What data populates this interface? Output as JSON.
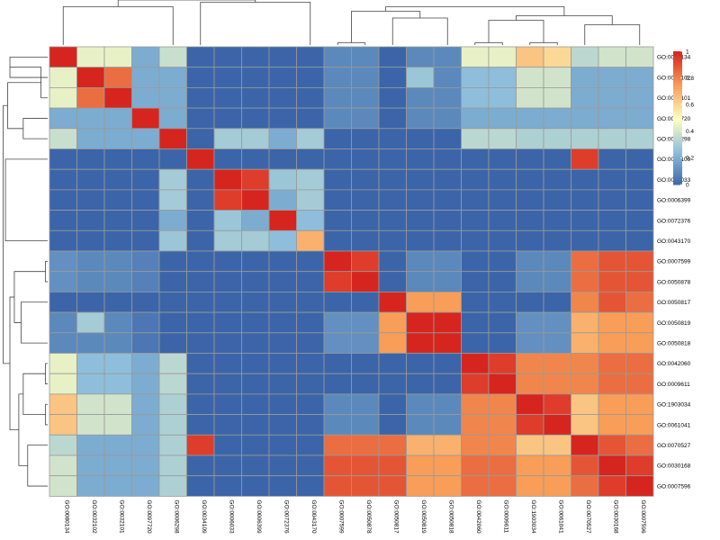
{
  "chart_data": {
    "type": "heatmap",
    "title": "",
    "xlabel": "",
    "ylabel": "",
    "rows": [
      "GO:0080134",
      "GO:0032102",
      "GO:0032101",
      "GO:0097720",
      "GO:0006298",
      "GO:0034109",
      "GO:0006033",
      "GO:0006399",
      "GO:0072376",
      "GO:0043170",
      "GO:0007599",
      "GO:0050878",
      "GO:0050817",
      "GO:0050819",
      "GO:0050818",
      "GO:0042060",
      "GO:0009611",
      "GO:1903034",
      "GO:0061041",
      "GO:0070527",
      "GO:0030168",
      "GO:0007596"
    ],
    "columns": [
      "GO:0080134",
      "GO:0032102",
      "GO:0032101",
      "GO:0097720",
      "GO:0006298",
      "GO:0034109",
      "GO:0006033",
      "GO:0006399",
      "GO:0072376",
      "GO:0043170",
      "GO:0007599",
      "GO:0050878",
      "GO:0050817",
      "GO:0050819",
      "GO:0050818",
      "GO:0042060",
      "GO:0009611",
      "GO:1903034",
      "GO:0061041",
      "GO:0070527",
      "GO:0030168",
      "GO:0007596"
    ],
    "values": [
      [
        1.0,
        0.45,
        0.45,
        0.2,
        0.38,
        0,
        0,
        0,
        0,
        0,
        0.1,
        0.1,
        0,
        0.1,
        0.1,
        0.45,
        0.45,
        0.65,
        0.6,
        0.35,
        0.4,
        0.4
      ],
      [
        0.45,
        1.0,
        0.85,
        0.2,
        0.2,
        0,
        0,
        0,
        0,
        0,
        0.1,
        0.1,
        0,
        0.28,
        0.1,
        0.25,
        0.25,
        0.4,
        0.4,
        0.2,
        0.2,
        0.2
      ],
      [
        0.45,
        0.85,
        1.0,
        0.2,
        0.2,
        0,
        0,
        0,
        0,
        0,
        0.1,
        0.1,
        0,
        0.1,
        0.1,
        0.25,
        0.25,
        0.4,
        0.4,
        0.2,
        0.2,
        0.2
      ],
      [
        0.2,
        0.2,
        0.2,
        1.0,
        0.2,
        0,
        0,
        0,
        0,
        0,
        0.1,
        0.1,
        0,
        0.1,
        0.1,
        0.2,
        0.2,
        0.2,
        0.2,
        0.2,
        0.2,
        0.2
      ],
      [
        0.38,
        0.2,
        0.2,
        0.2,
        1.0,
        0,
        0.3,
        0.3,
        0.2,
        0.3,
        0,
        0,
        0,
        0,
        0,
        0.35,
        0.35,
        0.32,
        0.32,
        0.32,
        0.32,
        0.32
      ],
      [
        0,
        0,
        0,
        0,
        0,
        1.0,
        0,
        0,
        0,
        0,
        0,
        0,
        0,
        0,
        0,
        0,
        0,
        0,
        0,
        0.95,
        0,
        0
      ],
      [
        0,
        0,
        0,
        0,
        0.3,
        0,
        1.0,
        0.95,
        0.28,
        0.3,
        0,
        0,
        0,
        0,
        0,
        0,
        0,
        0,
        0,
        0,
        0,
        0
      ],
      [
        0,
        0,
        0,
        0,
        0.3,
        0,
        0.95,
        1.0,
        0.2,
        0.3,
        0,
        0,
        0,
        0,
        0,
        0,
        0,
        0,
        0,
        0,
        0,
        0
      ],
      [
        0,
        0,
        0,
        0,
        0.2,
        0,
        0.28,
        0.2,
        1.0,
        0.25,
        0,
        0,
        0,
        0,
        0,
        0,
        0,
        0,
        0,
        0,
        0,
        0
      ],
      [
        0,
        0,
        0,
        0,
        0.28,
        0,
        0.3,
        0.3,
        0.25,
        0.7,
        0,
        0,
        0,
        0,
        0,
        0,
        0,
        0,
        0,
        0,
        0,
        0
      ],
      [
        0.12,
        0.1,
        0.1,
        0.08,
        0,
        0,
        0,
        0,
        0,
        0,
        1.0,
        0.95,
        0,
        0.1,
        0.1,
        0,
        0,
        0.1,
        0.1,
        0.85,
        0.9,
        0.9
      ],
      [
        0.12,
        0.1,
        0.1,
        0.08,
        0,
        0,
        0,
        0,
        0,
        0,
        0.95,
        1.0,
        0,
        0.1,
        0.1,
        0,
        0,
        0.1,
        0.1,
        0.85,
        0.9,
        0.9
      ],
      [
        0,
        0,
        0,
        0,
        0,
        0,
        0,
        0,
        0,
        0,
        0,
        0,
        1.0,
        0.75,
        0.75,
        0,
        0,
        0,
        0,
        0.8,
        0.9,
        0.85
      ],
      [
        0.1,
        0.3,
        0.1,
        0.05,
        0,
        0,
        0,
        0,
        0,
        0,
        0.12,
        0.12,
        0.75,
        1.0,
        1.0,
        0,
        0,
        0.12,
        0.12,
        0.7,
        0.75,
        0.75
      ],
      [
        0.1,
        0.1,
        0.1,
        0.05,
        0,
        0,
        0,
        0,
        0,
        0,
        0.12,
        0.12,
        0.75,
        1.0,
        1.0,
        0,
        0,
        0.12,
        0.12,
        0.7,
        0.75,
        0.75
      ],
      [
        0.45,
        0.25,
        0.25,
        0.2,
        0.35,
        0,
        0,
        0,
        0,
        0,
        0,
        0,
        0,
        0,
        0,
        1.0,
        0.95,
        0.8,
        0.8,
        0.8,
        0.85,
        0.85
      ],
      [
        0.45,
        0.25,
        0.25,
        0.2,
        0.35,
        0,
        0,
        0,
        0,
        0,
        0,
        0,
        0,
        0,
        0,
        0.95,
        1.0,
        0.8,
        0.8,
        0.8,
        0.85,
        0.85
      ],
      [
        0.65,
        0.4,
        0.4,
        0.2,
        0.32,
        0,
        0,
        0,
        0,
        0,
        0.1,
        0.1,
        0,
        0.1,
        0.1,
        0.8,
        0.8,
        1.0,
        0.95,
        0.65,
        0.75,
        0.75
      ],
      [
        0.65,
        0.4,
        0.4,
        0.2,
        0.32,
        0,
        0,
        0,
        0,
        0,
        0.1,
        0.1,
        0,
        0.1,
        0.1,
        0.8,
        0.8,
        0.95,
        1.0,
        0.65,
        0.75,
        0.75
      ],
      [
        0.35,
        0.2,
        0.2,
        0.2,
        0.32,
        0.95,
        0,
        0,
        0,
        0,
        0.85,
        0.85,
        0.85,
        0.7,
        0.7,
        0.8,
        0.8,
        0.65,
        0.65,
        1.0,
        0.9,
        0.85
      ],
      [
        0.4,
        0.2,
        0.2,
        0.2,
        0.32,
        0,
        0,
        0,
        0,
        0,
        0.9,
        0.9,
        0.9,
        0.75,
        0.75,
        0.85,
        0.85,
        0.75,
        0.75,
        0.9,
        1.0,
        0.95
      ],
      [
        0.4,
        0.2,
        0.2,
        0.2,
        0.32,
        0,
        0,
        0,
        0,
        0,
        0.9,
        0.9,
        0.9,
        0.75,
        0.75,
        0.85,
        0.85,
        0.75,
        0.75,
        0.85,
        0.95,
        1.0
      ]
    ],
    "row_dendrogram": {
      "merges": [
        [
          0,
          1,
          0.85
        ],
        [
          1,
          2,
          0.15
        ],
        [
          1,
          2,
          0.45
        ],
        [
          3,
          4,
          0.55
        ],
        [
          0,
          4,
          0.9
        ],
        [
          5,
          9,
          0.95
        ],
        [
          6,
          7,
          0.05
        ],
        [
          6,
          9,
          0.55
        ],
        [
          8,
          9,
          0.45
        ],
        [
          10,
          11,
          0.05
        ],
        [
          12,
          14,
          0.6
        ],
        [
          13,
          14,
          0.05
        ],
        [
          10,
          14,
          0.75
        ],
        [
          15,
          16,
          0.05
        ],
        [
          17,
          18,
          0.05
        ],
        [
          15,
          18,
          0.55
        ],
        [
          19,
          21,
          0.45
        ],
        [
          20,
          21,
          0.1
        ],
        [
          15,
          21,
          0.65
        ],
        [
          10,
          21,
          0.85
        ],
        [
          0,
          21,
          1.0
        ]
      ]
    },
    "col_dendrogram": {
      "merges": [
        [
          0,
          4,
          0.85
        ],
        [
          1,
          2,
          0.15
        ],
        [
          1,
          2,
          0.45
        ],
        [
          3,
          4,
          0.55
        ],
        [
          5,
          9,
          0.95
        ],
        [
          6,
          7,
          0.05
        ],
        [
          6,
          9,
          0.55
        ],
        [
          8,
          9,
          0.45
        ],
        [
          0,
          9,
          1.0
        ],
        [
          10,
          11,
          0.05
        ],
        [
          12,
          14,
          0.6
        ],
        [
          13,
          14,
          0.05
        ],
        [
          10,
          14,
          0.75
        ],
        [
          15,
          16,
          0.05
        ],
        [
          17,
          18,
          0.05
        ],
        [
          15,
          18,
          0.55
        ],
        [
          19,
          21,
          0.45
        ],
        [
          20,
          21,
          0.1
        ],
        [
          15,
          21,
          0.65
        ],
        [
          10,
          21,
          0.85
        ]
      ]
    },
    "color_scale": {
      "min": 0,
      "max": 1,
      "ticks": [
        "0",
        "0.2",
        "0.4",
        "0.6",
        "0.8",
        "1"
      ],
      "colors": [
        "#3b65a8",
        "#8ebedb",
        "#fefec0",
        "#f89e58",
        "#d6251f"
      ]
    },
    "grid": true
  }
}
